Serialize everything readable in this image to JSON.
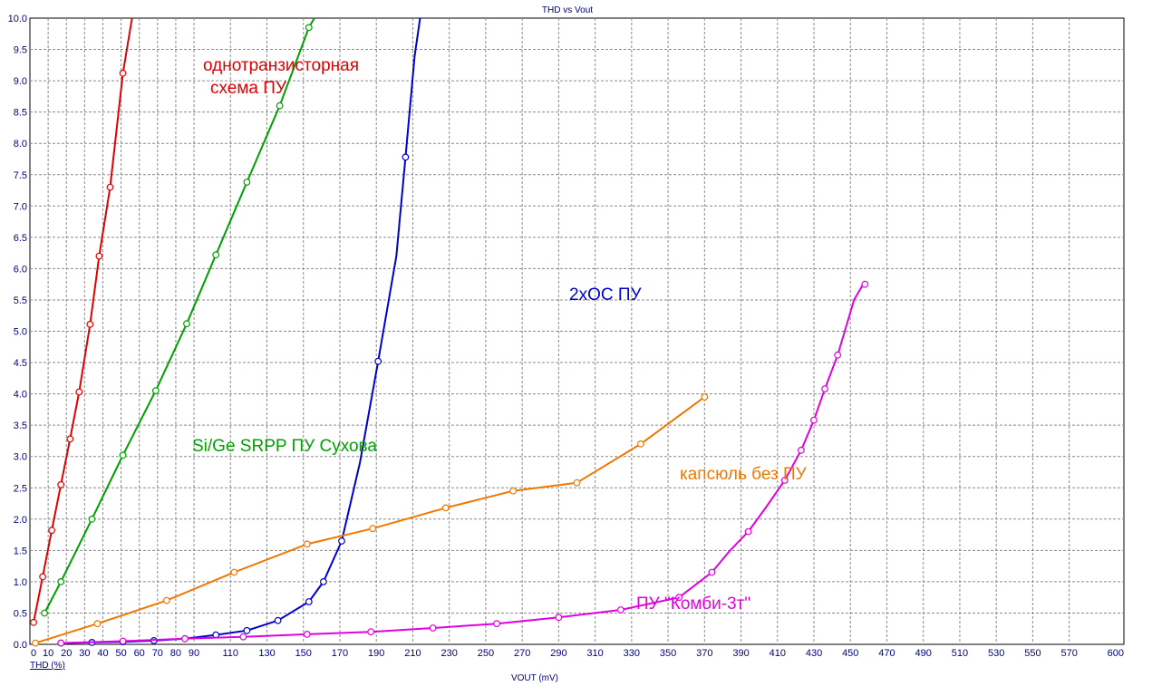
{
  "chart_data": {
    "type": "line",
    "title": "THD vs Vout",
    "xlabel": "VOUT (mV)",
    "ylabel": "THD (%)",
    "xlim": [
      0,
      600
    ],
    "ylim": [
      0,
      10
    ],
    "x_ticks": [
      0,
      10,
      20,
      30,
      40,
      50,
      60,
      70,
      80,
      90,
      110,
      130,
      150,
      170,
      190,
      210,
      230,
      250,
      270,
      290,
      310,
      330,
      350,
      370,
      390,
      410,
      430,
      450,
      470,
      490,
      510,
      530,
      550,
      570,
      600
    ],
    "y_ticks": [
      "0.0",
      "0.5",
      "1.0",
      "1.5",
      "2.0",
      "2.5",
      "3.0",
      "3.5",
      "4.0",
      "4.5",
      "5.0",
      "5.5",
      "6.0",
      "6.5",
      "7.0",
      "7.5",
      "8.0",
      "8.5",
      "9.0",
      "9.5",
      "10.0"
    ],
    "grid": true,
    "series": [
      {
        "name": "однотранзисторная схема ПУ",
        "label_lines": [
          "однотранзисторная",
          "схема ПУ"
        ],
        "color": "#e00000",
        "points": [
          [
            2,
            0.35
          ],
          [
            7,
            1.08
          ],
          [
            12,
            1.82
          ],
          [
            17,
            2.55
          ],
          [
            22,
            3.28
          ],
          [
            27,
            4.03
          ],
          [
            33,
            5.11
          ],
          [
            38,
            6.2
          ],
          [
            44,
            7.3
          ],
          [
            51,
            9.12
          ],
          [
            56,
            10.0
          ]
        ],
        "markers": [
          [
            2,
            0.35
          ],
          [
            7,
            1.08
          ],
          [
            12,
            1.82
          ],
          [
            17,
            2.55
          ],
          [
            22,
            3.28
          ],
          [
            27,
            4.03
          ],
          [
            33,
            5.11
          ],
          [
            38,
            6.2
          ],
          [
            44,
            7.3
          ],
          [
            51,
            9.12
          ]
        ]
      },
      {
        "name": "Si/Ge SRPP ПУ Сухова",
        "label_lines": [
          "Si/Ge SRPP ПУ Сухова"
        ],
        "color": "#00a000",
        "points": [
          [
            8,
            0.5
          ],
          [
            17,
            1.0
          ],
          [
            34,
            2.0
          ],
          [
            51,
            3.02
          ],
          [
            69,
            4.05
          ],
          [
            86,
            5.12
          ],
          [
            102,
            6.22
          ],
          [
            119,
            7.38
          ],
          [
            137,
            8.6
          ],
          [
            153,
            9.85
          ],
          [
            156,
            10.0
          ]
        ],
        "markers": [
          [
            8,
            0.5
          ],
          [
            17,
            1.0
          ],
          [
            34,
            2.0
          ],
          [
            51,
            3.02
          ],
          [
            69,
            4.05
          ],
          [
            86,
            5.12
          ],
          [
            102,
            6.22
          ],
          [
            119,
            7.38
          ],
          [
            137,
            8.6
          ],
          [
            153,
            9.85
          ]
        ]
      },
      {
        "name": "2хОС ПУ",
        "label_lines": [
          "2хОС ПУ"
        ],
        "color": "#0000d0",
        "points": [
          [
            17,
            0.02
          ],
          [
            34,
            0.03
          ],
          [
            51,
            0.04
          ],
          [
            68,
            0.06
          ],
          [
            85,
            0.09
          ],
          [
            102,
            0.15
          ],
          [
            119,
            0.22
          ],
          [
            136,
            0.38
          ],
          [
            153,
            0.68
          ],
          [
            161,
            1.0
          ],
          [
            171,
            1.65
          ],
          [
            181,
            2.9
          ],
          [
            191,
            4.52
          ],
          [
            201,
            6.2
          ],
          [
            206,
            7.78
          ],
          [
            211,
            9.4
          ],
          [
            214,
            10.0
          ]
        ],
        "markers": [
          [
            17,
            0.02
          ],
          [
            34,
            0.03
          ],
          [
            51,
            0.04
          ],
          [
            68,
            0.06
          ],
          [
            85,
            0.09
          ],
          [
            102,
            0.15
          ],
          [
            119,
            0.22
          ],
          [
            136,
            0.38
          ],
          [
            153,
            0.68
          ],
          [
            161,
            1.0
          ],
          [
            171,
            1.65
          ],
          [
            191,
            4.52
          ],
          [
            206,
            7.78
          ]
        ]
      },
      {
        "name": "капсюль без ПУ",
        "label_lines": [
          "капсюль без ПУ"
        ],
        "color": "#f07800",
        "points": [
          [
            3,
            0.02
          ],
          [
            37,
            0.33
          ],
          [
            75,
            0.7
          ],
          [
            112,
            1.15
          ],
          [
            152,
            1.6
          ],
          [
            188,
            1.85
          ],
          [
            228,
            2.18
          ],
          [
            265,
            2.45
          ],
          [
            300,
            2.58
          ],
          [
            335,
            3.2
          ],
          [
            370,
            3.95
          ]
        ],
        "markers": [
          [
            3,
            0.02
          ],
          [
            37,
            0.33
          ],
          [
            75,
            0.7
          ],
          [
            112,
            1.15
          ],
          [
            152,
            1.6
          ],
          [
            188,
            1.85
          ],
          [
            228,
            2.18
          ],
          [
            265,
            2.45
          ],
          [
            300,
            2.58
          ],
          [
            335,
            3.2
          ],
          [
            370,
            3.95
          ]
        ]
      },
      {
        "name": "ПУ \"Комби-3т\"",
        "label_lines": [
          "ПУ  \"Комби-3т\""
        ],
        "color": "#e000e0",
        "points": [
          [
            17,
            0.02
          ],
          [
            51,
            0.05
          ],
          [
            85,
            0.09
          ],
          [
            117,
            0.12
          ],
          [
            152,
            0.16
          ],
          [
            187,
            0.2
          ],
          [
            221,
            0.26
          ],
          [
            256,
            0.33
          ],
          [
            290,
            0.43
          ],
          [
            324,
            0.55
          ],
          [
            356,
            0.75
          ],
          [
            374,
            1.15
          ],
          [
            384,
            1.5
          ],
          [
            394,
            1.8
          ],
          [
            404,
            2.2
          ],
          [
            414,
            2.62
          ],
          [
            423,
            3.1
          ],
          [
            430,
            3.58
          ],
          [
            436,
            4.08
          ],
          [
            443,
            4.62
          ],
          [
            452,
            5.5
          ],
          [
            458,
            5.8
          ]
        ],
        "markers": [
          [
            17,
            0.02
          ],
          [
            51,
            0.05
          ],
          [
            85,
            0.09
          ],
          [
            117,
            0.12
          ],
          [
            152,
            0.16
          ],
          [
            187,
            0.2
          ],
          [
            221,
            0.26
          ],
          [
            256,
            0.33
          ],
          [
            290,
            0.43
          ],
          [
            324,
            0.55
          ],
          [
            356,
            0.75
          ],
          [
            374,
            1.15
          ],
          [
            394,
            1.8
          ],
          [
            414,
            2.62
          ],
          [
            423,
            3.1
          ],
          [
            430,
            3.58
          ],
          [
            436,
            4.08
          ],
          [
            443,
            4.62
          ],
          [
            458,
            5.75
          ]
        ]
      }
    ]
  }
}
